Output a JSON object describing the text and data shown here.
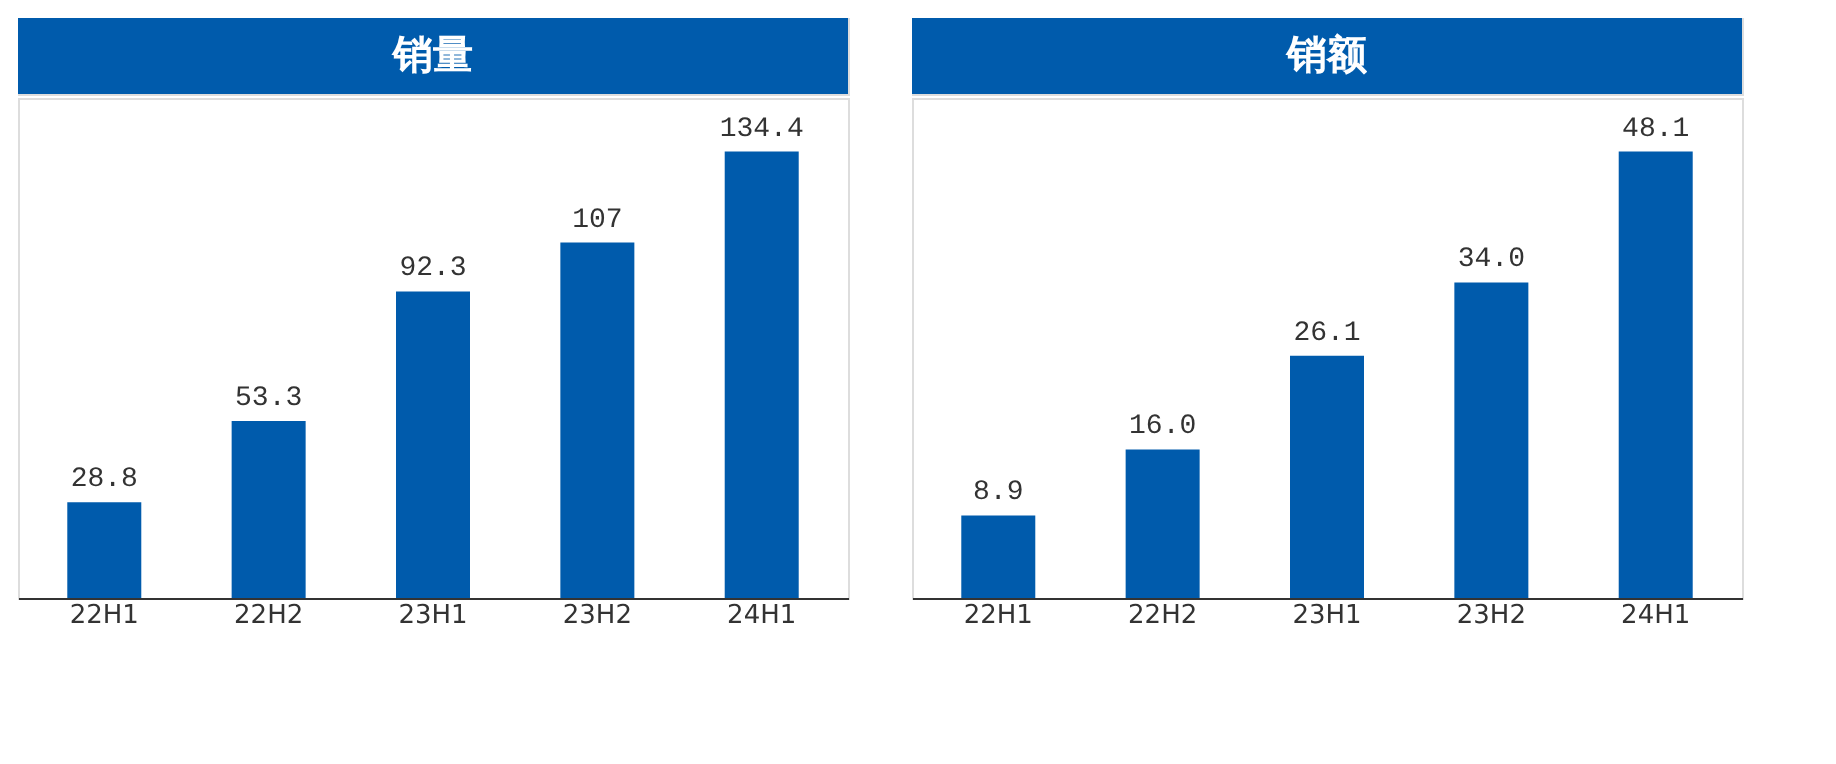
{
  "chart_data": [
    {
      "type": "bar",
      "title": "销量",
      "categories": [
        "22H1",
        "22H2",
        "23H1",
        "23H2",
        "24H1"
      ],
      "values": [
        28.8,
        53.3,
        92.3,
        107,
        134.4
      ],
      "color": "#005bac",
      "data_labels": true,
      "grid": false
    },
    {
      "type": "bar",
      "title": "销额",
      "categories": [
        "22H1",
        "22H2",
        "23H1",
        "23H2",
        "24H1"
      ],
      "values": [
        8.9,
        16.0,
        26.1,
        34.0,
        48.1
      ],
      "value_labels": [
        "8.9",
        "16.0",
        "26.1",
        "34.0",
        "48.1"
      ],
      "color": "#005bac",
      "grid": false
    }
  ]
}
